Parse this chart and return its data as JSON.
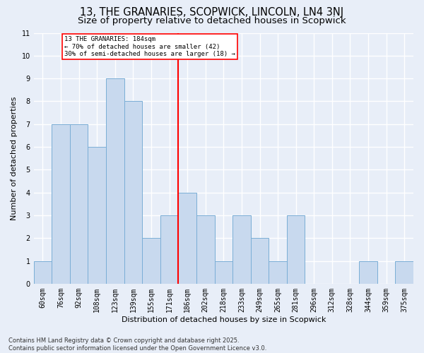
{
  "title": "13, THE GRANARIES, SCOPWICK, LINCOLN, LN4 3NJ",
  "subtitle": "Size of property relative to detached houses in Scopwick",
  "xlabel": "Distribution of detached houses by size in Scopwick",
  "ylabel": "Number of detached properties",
  "categories": [
    "60sqm",
    "76sqm",
    "92sqm",
    "108sqm",
    "123sqm",
    "139sqm",
    "155sqm",
    "171sqm",
    "186sqm",
    "202sqm",
    "218sqm",
    "233sqm",
    "249sqm",
    "265sqm",
    "281sqm",
    "296sqm",
    "312sqm",
    "328sqm",
    "344sqm",
    "359sqm",
    "375sqm"
  ],
  "values": [
    1,
    7,
    7,
    6,
    9,
    8,
    2,
    3,
    4,
    3,
    1,
    3,
    2,
    1,
    3,
    0,
    0,
    0,
    1,
    0,
    1
  ],
  "bar_color": "#c8d9ee",
  "bar_edge_color": "#7aaed6",
  "red_line_index": 8,
  "ylim": [
    0,
    11
  ],
  "yticks": [
    0,
    1,
    2,
    3,
    4,
    5,
    6,
    7,
    8,
    9,
    10,
    11
  ],
  "annotation_title": "13 THE GRANARIES: 184sqm",
  "annotation_line1": "← 70% of detached houses are smaller (42)",
  "annotation_line2": "30% of semi-detached houses are larger (18) →",
  "footer_line1": "Contains HM Land Registry data © Crown copyright and database right 2025.",
  "footer_line2": "Contains public sector information licensed under the Open Government Licence v3.0.",
  "bg_color": "#e8eef8",
  "plot_bg_color": "#e8eef8",
  "grid_color": "#ffffff",
  "title_fontsize": 10.5,
  "subtitle_fontsize": 9.5,
  "label_fontsize": 8,
  "tick_fontsize": 7,
  "footer_fontsize": 6
}
